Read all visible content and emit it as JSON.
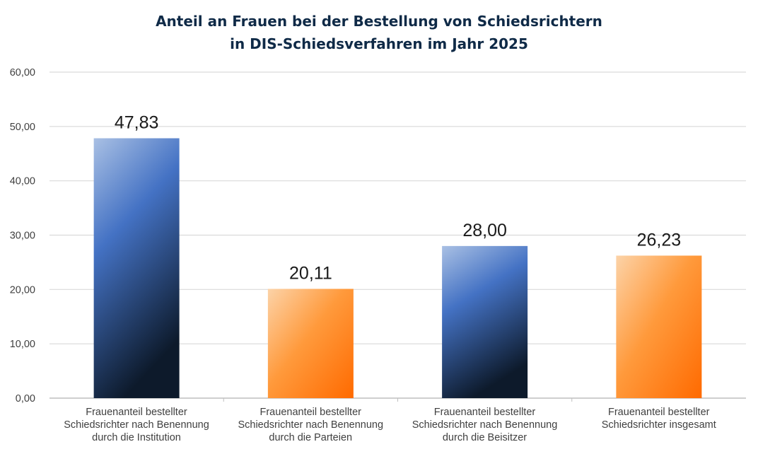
{
  "chart_data": {
    "type": "bar",
    "title_lines": [
      "Anteil an Frauen bei der Bestellung von Schiedsrichtern",
      "in DIS-Schiedsverfahren im Jahr 2025"
    ],
    "categories": [
      [
        "Frauenanteil bestellter",
        "Schiedsrichter nach Benennung",
        "durch die Institution"
      ],
      [
        "Frauenanteil bestellter",
        "Schiedsrichter nach Benennung",
        "durch die Parteien"
      ],
      [
        "Frauenanteil bestellter",
        "Schiedsrichter nach Benennung",
        "durch die Beisitzer"
      ],
      [
        "Frauenanteil bestellter",
        "Schiedsrichter insgesamt"
      ]
    ],
    "values": [
      47.83,
      20.11,
      28.0,
      26.23
    ],
    "data_labels": [
      "47,83",
      "20,11",
      "28,00",
      "26,23"
    ],
    "bar_styles": [
      "blue",
      "orange",
      "blue",
      "orange"
    ],
    "yticks": [
      "0,00",
      "10,00",
      "20,00",
      "30,00",
      "40,00",
      "50,00",
      "60,00"
    ],
    "ylim": [
      0,
      60
    ],
    "xlabel": "",
    "ylabel": "",
    "grid": true,
    "colors": {
      "blue_light": "#a9c0e4",
      "blue_mid": "#4472c4",
      "blue_dark": "#0d1a2b",
      "orange_light": "#fcd3a8",
      "orange_mid": "#ff9a3c",
      "orange_dark": "#ff6a00",
      "grid": "#d9d9d9"
    }
  }
}
